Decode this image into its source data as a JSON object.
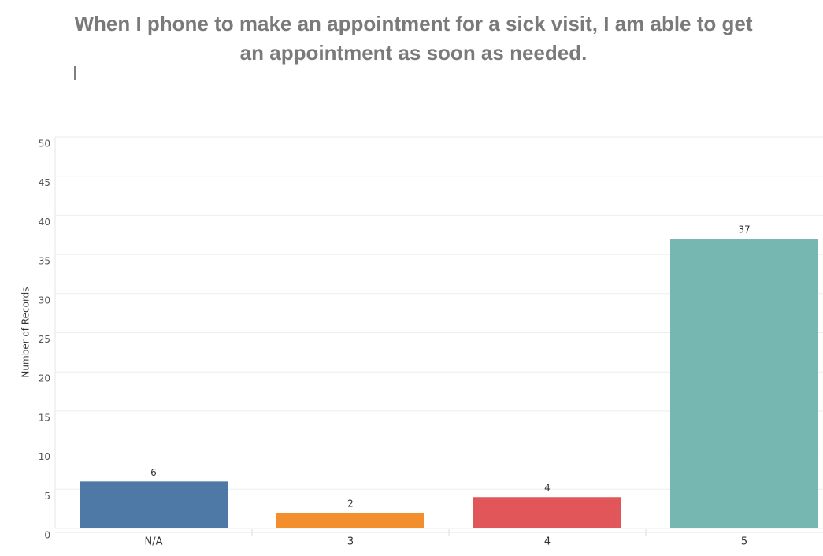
{
  "chart_data": {
    "type": "bar",
    "title": "When I phone to make an appointment for a sick visit, I am able to get an appointment as soon as needed.",
    "y_label": "Number of Records",
    "categories": [
      "N/A",
      "3",
      "4",
      "5"
    ],
    "values": [
      6,
      2,
      4,
      37
    ],
    "colors": [
      "#4e79a7",
      "#f28e2b",
      "#e15759",
      "#76b7b2"
    ],
    "ylim": [
      0,
      50
    ],
    "yticks": [
      0,
      5,
      10,
      15,
      20,
      25,
      30,
      35,
      40,
      45,
      50
    ],
    "grid": true
  }
}
